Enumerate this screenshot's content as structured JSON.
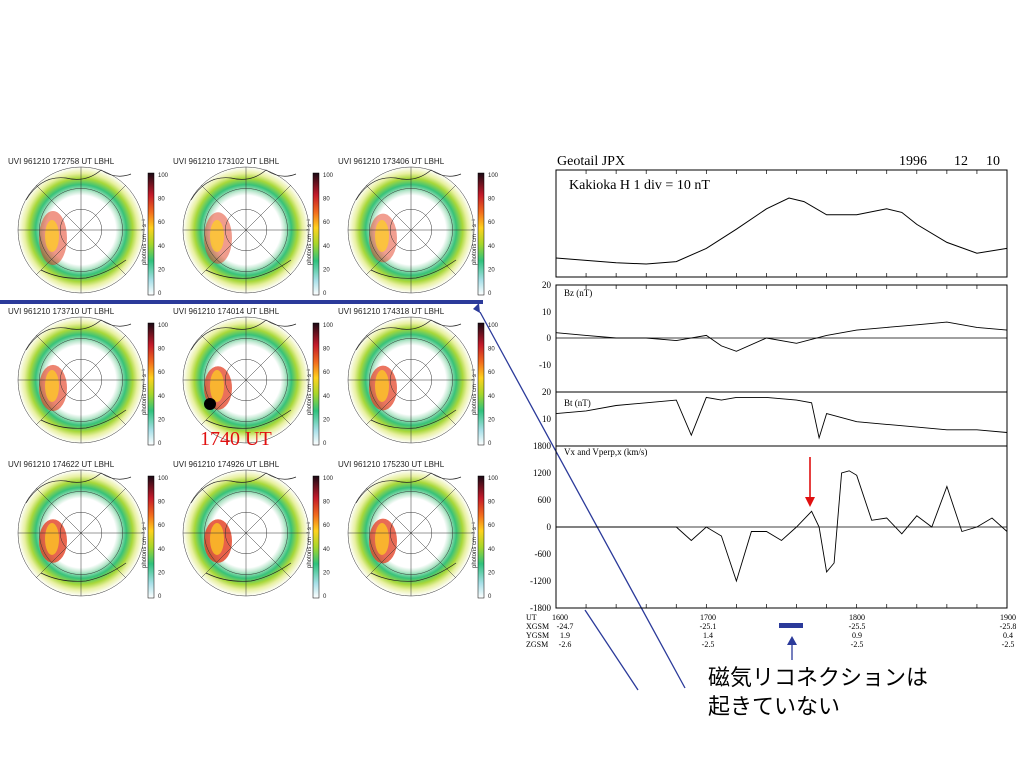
{
  "uvi_panels": [
    {
      "title": "UVI 961210 172758 UT  LBHL"
    },
    {
      "title": "UVI 961210 173102 UT  LBHL"
    },
    {
      "title": "UVI 961210 173406 UT  LBHL"
    },
    {
      "title": "UVI 961210 173710 UT  LBHL"
    },
    {
      "title": "UVI 961210 174014 UT  LBHL"
    },
    {
      "title": "UVI 961210 174318 UT  LBHL"
    },
    {
      "title": "UVI 961210 174622 UT  LBHL"
    },
    {
      "title": "UVI 961210 174926 UT  LBHL"
    },
    {
      "title": "UVI 961210 175230 UT  LBHL"
    }
  ],
  "colorbar": {
    "ticks": [
      "100",
      "80",
      "60",
      "40",
      "20",
      "0"
    ],
    "label": "photons cm⁻² s⁻¹"
  },
  "highlight_label": "1740 UT",
  "header": {
    "left": "Geotail   JPX",
    "year": "1996",
    "month": "12",
    "day": "10"
  },
  "chart_data": [
    {
      "type": "line",
      "panel_label": "Kakioka   H   1 div = 10 nT",
      "x_range": [
        1600,
        1900
      ],
      "x": [
        1600,
        1620,
        1640,
        1660,
        1680,
        1700,
        1720,
        1740,
        1755,
        1765,
        1780,
        1800,
        1820,
        1830,
        1840,
        1860,
        1880,
        1900
      ],
      "y": [
        0,
        -0.2,
        -0.4,
        -0.5,
        -0.3,
        0.8,
        2.4,
        4.1,
        5.0,
        4.7,
        3.6,
        3.6,
        4.1,
        3.8,
        2.8,
        1.3,
        0.4,
        0.8
      ]
    },
    {
      "type": "line",
      "label": "Bz (nT)",
      "ylim": [
        -20,
        20
      ],
      "yticks": [
        "20",
        "10",
        "0",
        "-10"
      ],
      "x": [
        1600,
        1620,
        1640,
        1660,
        1680,
        1700,
        1710,
        1720,
        1740,
        1760,
        1780,
        1800,
        1820,
        1840,
        1860,
        1880,
        1900
      ],
      "y": [
        2,
        1,
        0,
        0,
        -1,
        1,
        -3,
        -5,
        0,
        -2,
        1,
        3,
        4,
        5,
        6,
        4,
        3
      ]
    },
    {
      "type": "line",
      "label": "Bt (nT)",
      "ylim": [
        0,
        20
      ],
      "yticks": [
        "20",
        "10"
      ],
      "x": [
        1600,
        1620,
        1640,
        1660,
        1680,
        1690,
        1700,
        1710,
        1720,
        1740,
        1760,
        1770,
        1775,
        1780,
        1800,
        1820,
        1840,
        1860,
        1880,
        1900
      ],
      "y": [
        12,
        13,
        15,
        16,
        17,
        4,
        18,
        17,
        18,
        18,
        17,
        16,
        3,
        12,
        9,
        8,
        7,
        6,
        6,
        5
      ]
    },
    {
      "type": "line",
      "label": "Vx and Vperp,x (km/s)",
      "ylim": [
        -1800,
        1800
      ],
      "yticks": [
        "1800",
        "1200",
        "600",
        "0",
        "-600",
        "-1200",
        "-1800"
      ],
      "x": [
        1600,
        1640,
        1680,
        1690,
        1700,
        1710,
        1720,
        1730,
        1740,
        1750,
        1760,
        1770,
        1775,
        1780,
        1785,
        1790,
        1795,
        1800,
        1810,
        1820,
        1830,
        1840,
        1850,
        1860,
        1870,
        1880,
        1890,
        1900
      ],
      "y": [
        0,
        0,
        0,
        -300,
        0,
        -200,
        -1200,
        -100,
        -100,
        -300,
        0,
        350,
        0,
        -1000,
        -800,
        1200,
        1250,
        1150,
        150,
        200,
        -150,
        250,
        0,
        900,
        -100,
        0,
        200,
        -100
      ]
    }
  ],
  "xaxis": {
    "ticks": [
      "1600",
      "1700",
      "1800",
      "1900"
    ],
    "row_labels": [
      "UT",
      "XGSM",
      "YGSM",
      "ZGSM"
    ],
    "values": [
      [
        "-24.7",
        "1.9",
        "-2.6"
      ],
      [
        "-25.1",
        "1.4",
        "-2.5"
      ],
      [
        "-25.5",
        "0.9",
        "-2.5"
      ],
      [
        "-25.8",
        "0.4",
        "-2.5"
      ]
    ]
  },
  "caption": "磁気リコネクションは\n起きていない"
}
